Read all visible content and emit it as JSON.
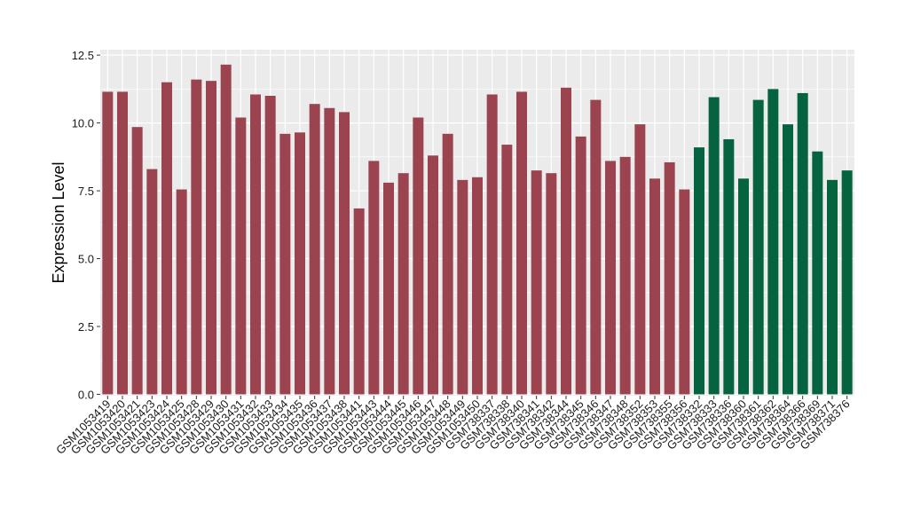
{
  "chart_data": {
    "type": "bar",
    "title": "",
    "xlabel": "",
    "ylabel": "Expression Level",
    "ylim": [
      -0.05,
      12.7
    ],
    "yticks": [
      0.0,
      2.5,
      5.0,
      7.5,
      10.0,
      12.5
    ],
    "ytick_labels": [
      "0.0",
      "2.5",
      "5.0",
      "7.5",
      "10.0",
      "12.5"
    ],
    "grid": true,
    "legend": "none",
    "colors": {
      "group_1": "#9b4450",
      "group_2": "#05643f",
      "panel_bg": "#ebebeb",
      "grid": "#ffffff"
    },
    "categories": [
      "GSM1053419",
      "GSM1053420",
      "GSM1053421",
      "GSM1053423",
      "GSM1053424",
      "GSM1053425",
      "GSM1053428",
      "GSM1053429",
      "GSM1053430",
      "GSM1053431",
      "GSM1053432",
      "GSM1053433",
      "GSM1053434",
      "GSM1053435",
      "GSM1053436",
      "GSM1053437",
      "GSM1053438",
      "GSM1053441",
      "GSM1053443",
      "GSM1053444",
      "GSM1053445",
      "GSM1053446",
      "GSM1053447",
      "GSM1053448",
      "GSM1053449",
      "GSM1053450",
      "GSM738337",
      "GSM738338",
      "GSM738340",
      "GSM738341",
      "GSM738342",
      "GSM738344",
      "GSM738345",
      "GSM738346",
      "GSM738347",
      "GSM738348",
      "GSM738352",
      "GSM738353",
      "GSM738355",
      "GSM738356",
      "GSM738332",
      "GSM738333",
      "GSM738336",
      "GSM738360",
      "GSM738361",
      "GSM738362",
      "GSM738364",
      "GSM738366",
      "GSM738369",
      "GSM738371",
      "GSM738376"
    ],
    "values": [
      11.15,
      11.15,
      9.85,
      8.3,
      11.5,
      7.55,
      11.6,
      11.55,
      12.15,
      10.2,
      11.05,
      11.0,
      9.6,
      9.65,
      10.7,
      10.55,
      10.4,
      6.85,
      8.6,
      7.8,
      8.15,
      10.2,
      8.8,
      9.6,
      7.9,
      8.0,
      11.05,
      9.2,
      11.15,
      8.25,
      8.15,
      11.3,
      9.5,
      10.85,
      8.6,
      8.75,
      9.95,
      7.95,
      8.55,
      7.55,
      9.1,
      10.95,
      9.4,
      7.95,
      10.85,
      11.25,
      9.95,
      11.1,
      8.95,
      7.9,
      8.25
    ],
    "groups": [
      1,
      1,
      1,
      1,
      1,
      1,
      1,
      1,
      1,
      1,
      1,
      1,
      1,
      1,
      1,
      1,
      1,
      1,
      1,
      1,
      1,
      1,
      1,
      1,
      1,
      1,
      1,
      1,
      1,
      1,
      1,
      1,
      1,
      1,
      1,
      1,
      1,
      1,
      1,
      1,
      2,
      2,
      2,
      2,
      2,
      2,
      2,
      2,
      2,
      2,
      2
    ]
  }
}
